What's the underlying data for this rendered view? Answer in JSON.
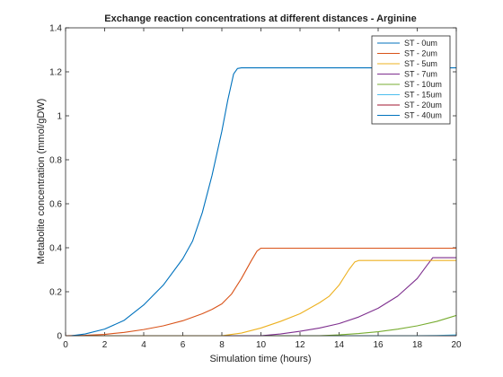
{
  "chart_data": {
    "type": "line",
    "title": "Exchange reaction concentrations at different distances - Arginine",
    "xlabel": "Simulation time (hours)",
    "ylabel": "Metabolite concentration (mmol/gDW)",
    "xlim": [
      0,
      20
    ],
    "ylim": [
      0,
      1.4
    ],
    "xticks": [
      0,
      2,
      4,
      6,
      8,
      10,
      12,
      14,
      16,
      18,
      20
    ],
    "yticks": [
      0,
      0.2,
      0.4,
      0.6,
      0.8,
      1,
      1.2,
      1.4
    ],
    "xtick_labels": [
      "0",
      "2",
      "4",
      "6",
      "8",
      "10",
      "12",
      "14",
      "16",
      "18",
      "20"
    ],
    "ytick_labels": [
      "0",
      "0.2",
      "0.4",
      "0.6",
      "0.8",
      "1",
      "1.2",
      "1.4"
    ],
    "grid": false,
    "legend_position": "top-right",
    "series": [
      {
        "name": "ST - 0um",
        "color": "#0072BD",
        "x": [
          0.3,
          1,
          2,
          3,
          4,
          5,
          6,
          6.5,
          7,
          7.5,
          8,
          8.3,
          8.6,
          8.8,
          9,
          20
        ],
        "y": [
          0,
          0.008,
          0.03,
          0.07,
          0.14,
          0.23,
          0.35,
          0.43,
          0.56,
          0.73,
          0.93,
          1.07,
          1.19,
          1.215,
          1.218,
          1.218
        ]
      },
      {
        "name": "ST - 2um",
        "color": "#D95319",
        "x": [
          0,
          1,
          2,
          3,
          4,
          5,
          6,
          7,
          7.5,
          8,
          8.5,
          9,
          9.5,
          9.8,
          10,
          20
        ],
        "y": [
          0,
          0.002,
          0.006,
          0.015,
          0.028,
          0.045,
          0.068,
          0.1,
          0.12,
          0.145,
          0.19,
          0.26,
          0.34,
          0.385,
          0.398,
          0.398
        ]
      },
      {
        "name": "ST - 5um",
        "color": "#EDB120",
        "x": [
          0,
          8,
          9,
          10,
          11,
          12,
          13,
          13.5,
          14,
          14.5,
          14.8,
          15,
          20
        ],
        "y": [
          0,
          0,
          0.012,
          0.035,
          0.065,
          0.1,
          0.15,
          0.18,
          0.23,
          0.3,
          0.335,
          0.342,
          0.342
        ]
      },
      {
        "name": "ST - 7um",
        "color": "#7E2F8E",
        "x": [
          0,
          10,
          11,
          12,
          13,
          14,
          15,
          16,
          17,
          18,
          18.5,
          18.8,
          20
        ],
        "y": [
          0,
          0,
          0.008,
          0.02,
          0.035,
          0.055,
          0.085,
          0.125,
          0.18,
          0.26,
          0.32,
          0.355,
          0.355
        ]
      },
      {
        "name": "ST - 10um",
        "color": "#77AC30",
        "x": [
          0,
          13,
          14,
          15,
          16,
          17,
          18,
          19,
          20
        ],
        "y": [
          0,
          0,
          0.004,
          0.01,
          0.018,
          0.03,
          0.045,
          0.065,
          0.092
        ]
      },
      {
        "name": "ST - 15um",
        "color": "#4DBEEE",
        "x": [
          0,
          18,
          19,
          20
        ],
        "y": [
          0,
          0,
          0.001,
          0.004
        ]
      },
      {
        "name": "ST - 20um",
        "color": "#A2142F",
        "x": [
          0,
          20
        ],
        "y": [
          0,
          0
        ]
      },
      {
        "name": "ST - 40um",
        "color": "#0072BD",
        "x": [
          0,
          20
        ],
        "y": [
          0,
          0
        ]
      }
    ]
  }
}
